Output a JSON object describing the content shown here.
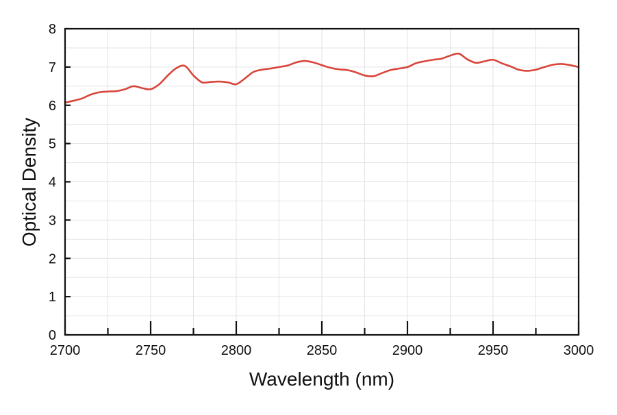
{
  "chart_data": {
    "type": "line",
    "title": "",
    "xlabel": "Wavelength (nm)",
    "ylabel": "Optical Density",
    "xlim": [
      2700,
      3000
    ],
    "ylim": [
      0,
      8
    ],
    "x_ticks": [
      2700,
      2750,
      2800,
      2850,
      2900,
      2950,
      3000
    ],
    "x_minor_ticks": [
      2725,
      2775,
      2825,
      2875,
      2925,
      2975
    ],
    "y_ticks": [
      0,
      1,
      2,
      3,
      4,
      5,
      6,
      7,
      8
    ],
    "x_ticks_text": [
      "2700",
      "2750",
      "2800",
      "2850",
      "2900",
      "2950",
      "3000"
    ],
    "y_ticks_text": [
      "0",
      "1",
      "2",
      "3",
      "4",
      "5",
      "6",
      "7",
      "8"
    ],
    "grid": true,
    "legend": "none",
    "series": [
      {
        "color": "#d9443a",
        "x": [
          2700,
          2705,
          2710,
          2715,
          2720,
          2725,
          2730,
          2735,
          2740,
          2745,
          2750,
          2755,
          2760,
          2765,
          2770,
          2775,
          2780,
          2785,
          2790,
          2795,
          2800,
          2805,
          2810,
          2815,
          2820,
          2825,
          2830,
          2835,
          2840,
          2845,
          2850,
          2855,
          2860,
          2865,
          2870,
          2875,
          2880,
          2885,
          2890,
          2895,
          2900,
          2905,
          2910,
          2915,
          2920,
          2925,
          2930,
          2935,
          2940,
          2945,
          2950,
          2955,
          2960,
          2965,
          2970,
          2975,
          2980,
          2985,
          2990,
          2995,
          3000
        ],
        "y": [
          6.07,
          6.12,
          6.18,
          6.28,
          6.34,
          6.36,
          6.37,
          6.42,
          6.5,
          6.45,
          6.42,
          6.55,
          6.78,
          6.97,
          7.03,
          6.78,
          6.6,
          6.61,
          6.62,
          6.6,
          6.55,
          6.7,
          6.87,
          6.93,
          6.96,
          7.0,
          7.04,
          7.12,
          7.16,
          7.12,
          7.05,
          6.98,
          6.94,
          6.92,
          6.86,
          6.78,
          6.76,
          6.84,
          6.92,
          6.96,
          7.0,
          7.1,
          7.15,
          7.19,
          7.22,
          7.3,
          7.35,
          7.2,
          7.11,
          7.15,
          7.19,
          7.1,
          7.02,
          6.93,
          6.9,
          6.93,
          7.0,
          7.06,
          7.08,
          7.05,
          7.0
        ]
      }
    ]
  }
}
